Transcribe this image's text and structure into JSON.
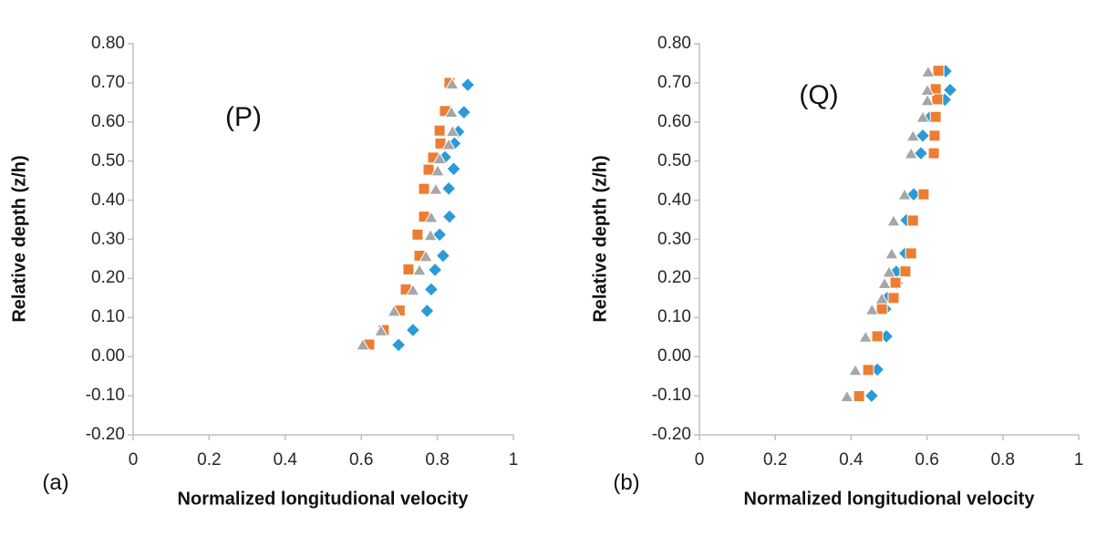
{
  "page": {
    "background": "#ffffff"
  },
  "colors": {
    "axis_line": "#BFBFBF",
    "tick_text": "#262626",
    "title_text": "#111111"
  },
  "chart_data": [
    {
      "type": "scatter",
      "panel_label": "(P)",
      "figure_label": "(a)",
      "xlabel": "Normalized longitudional velocity",
      "ylabel": "Relative depth (z/h)",
      "xlim": [
        0,
        1
      ],
      "ylim": [
        -0.2,
        0.8
      ],
      "grid": "off",
      "legend": "none",
      "x_tick_labels": [
        "0",
        "0.2",
        "0.4",
        "0.6",
        "0.8",
        "1"
      ],
      "x_tick_values": [
        0,
        0.2,
        0.4,
        0.6,
        0.8,
        1
      ],
      "y_tick_labels": [
        "0.80",
        "0.70",
        "0.60",
        "0.50",
        "0.40",
        "0.30",
        "0.20",
        "0.10",
        "0.00",
        "-0.10",
        "-0.20"
      ],
      "y_tick_values": [
        0.8,
        0.7,
        0.6,
        0.5,
        0.4,
        0.3,
        0.2,
        0.1,
        0.0,
        -0.1,
        -0.2
      ],
      "series": [
        {
          "name": "blue-diamond",
          "marker": "diamond",
          "color": "#2B9BD7",
          "points": [
            [
              0.88,
              0.695
            ],
            [
              0.87,
              0.625
            ],
            [
              0.855,
              0.575
            ],
            [
              0.845,
              0.545
            ],
            [
              0.82,
              0.51
            ],
            [
              0.843,
              0.48
            ],
            [
              0.83,
              0.43
            ],
            [
              0.832,
              0.358
            ],
            [
              0.806,
              0.312
            ],
            [
              0.815,
              0.258
            ],
            [
              0.794,
              0.222
            ],
            [
              0.784,
              0.172
            ],
            [
              0.773,
              0.117
            ],
            [
              0.736,
              0.068
            ],
            [
              0.698,
              0.03
            ]
          ]
        },
        {
          "name": "orange-square",
          "marker": "square",
          "color": "#ED7D31",
          "points": [
            [
              0.832,
              0.7
            ],
            [
              0.82,
              0.628
            ],
            [
              0.806,
              0.578
            ],
            [
              0.808,
              0.545
            ],
            [
              0.789,
              0.509
            ],
            [
              0.777,
              0.478
            ],
            [
              0.765,
              0.429
            ],
            [
              0.765,
              0.358
            ],
            [
              0.748,
              0.312
            ],
            [
              0.753,
              0.258
            ],
            [
              0.724,
              0.223
            ],
            [
              0.717,
              0.172
            ],
            [
              0.701,
              0.118
            ],
            [
              0.659,
              0.068
            ],
            [
              0.621,
              0.031
            ]
          ]
        },
        {
          "name": "gray-triangle",
          "marker": "triangle",
          "color": "#A6A6A6",
          "points": [
            [
              0.839,
              0.697
            ],
            [
              0.837,
              0.625
            ],
            [
              0.84,
              0.576
            ],
            [
              0.83,
              0.542
            ],
            [
              0.806,
              0.506
            ],
            [
              0.801,
              0.475
            ],
            [
              0.796,
              0.428
            ],
            [
              0.784,
              0.356
            ],
            [
              0.782,
              0.31
            ],
            [
              0.77,
              0.256
            ],
            [
              0.753,
              0.221
            ],
            [
              0.736,
              0.17
            ],
            [
              0.686,
              0.116
            ],
            [
              0.652,
              0.066
            ],
            [
              0.604,
              0.03
            ]
          ]
        }
      ]
    },
    {
      "type": "scatter",
      "panel_label": "(Q)",
      "figure_label": "(b)",
      "xlabel": "Normalized longitudional velocity",
      "ylabel": "Relative depth (z/h)",
      "xlim": [
        0,
        1
      ],
      "ylim": [
        -0.2,
        0.8
      ],
      "grid": "off",
      "legend": "none",
      "x_tick_labels": [
        "0",
        "0.2",
        "0.4",
        "0.6",
        "0.8",
        "1"
      ],
      "x_tick_values": [
        0,
        0.2,
        0.4,
        0.6,
        0.8,
        1
      ],
      "y_tick_labels": [
        "0.80",
        "0.70",
        "0.60",
        "0.50",
        "0.40",
        "0.30",
        "0.20",
        "0.10",
        "0.00",
        "-0.10",
        "-0.20"
      ],
      "y_tick_values": [
        0.8,
        0.7,
        0.6,
        0.5,
        0.4,
        0.3,
        0.2,
        0.1,
        0.0,
        -0.1,
        -0.2
      ],
      "series": [
        {
          "name": "blue-diamond",
          "marker": "diamond",
          "color": "#2B9BD7",
          "points": [
            [
              0.649,
              0.73
            ],
            [
              0.661,
              0.682
            ],
            [
              0.647,
              0.657
            ],
            [
              0.608,
              0.612
            ],
            [
              0.589,
              0.565
            ],
            [
              0.584,
              0.52
            ],
            [
              0.565,
              0.415
            ],
            [
              0.546,
              0.349
            ],
            [
              0.543,
              0.264
            ],
            [
              0.519,
              0.217
            ],
            [
              0.52,
              0.188
            ],
            [
              0.495,
              0.15
            ],
            [
              0.49,
              0.122
            ],
            [
              0.493,
              0.052
            ],
            [
              0.469,
              -0.033
            ],
            [
              0.454,
              -0.1
            ]
          ]
        },
        {
          "name": "orange-square",
          "marker": "square",
          "color": "#ED7D31",
          "points": [
            [
              0.63,
              0.731
            ],
            [
              0.623,
              0.684
            ],
            [
              0.627,
              0.658
            ],
            [
              0.623,
              0.613
            ],
            [
              0.62,
              0.565
            ],
            [
              0.618,
              0.52
            ],
            [
              0.591,
              0.415
            ],
            [
              0.563,
              0.348
            ],
            [
              0.558,
              0.264
            ],
            [
              0.543,
              0.218
            ],
            [
              0.517,
              0.189
            ],
            [
              0.512,
              0.15
            ],
            [
              0.481,
              0.122
            ],
            [
              0.469,
              0.052
            ],
            [
              0.445,
              -0.034
            ],
            [
              0.421,
              -0.101
            ]
          ]
        },
        {
          "name": "gray-triangle",
          "marker": "triangle",
          "color": "#A6A6A6",
          "points": [
            [
              0.603,
              0.728
            ],
            [
              0.601,
              0.681
            ],
            [
              0.601,
              0.655
            ],
            [
              0.589,
              0.612
            ],
            [
              0.563,
              0.564
            ],
            [
              0.558,
              0.519
            ],
            [
              0.541,
              0.414
            ],
            [
              0.512,
              0.347
            ],
            [
              0.507,
              0.263
            ],
            [
              0.5,
              0.216
            ],
            [
              0.488,
              0.187
            ],
            [
              0.481,
              0.148
            ],
            [
              0.455,
              0.12
            ],
            [
              0.438,
              0.05
            ],
            [
              0.411,
              -0.035
            ],
            [
              0.389,
              -0.102
            ]
          ]
        }
      ]
    }
  ]
}
